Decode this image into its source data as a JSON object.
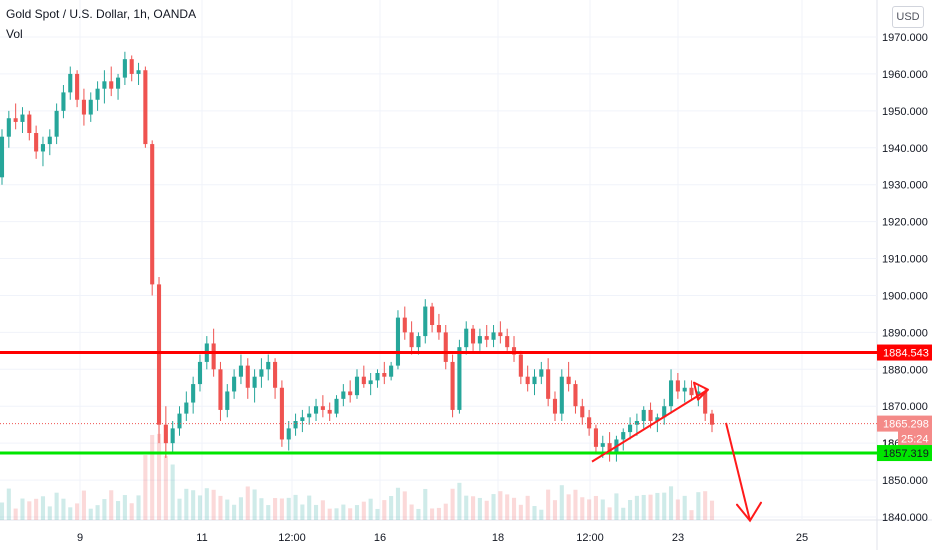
{
  "header": {
    "title": "Gold Spot / U.S. Dollar, 1h, OANDA",
    "volume_label": "Vol",
    "currency_button": "USD"
  },
  "colors": {
    "up": "#26a69a",
    "down": "#ef5350",
    "resistance_line": "#ff0000",
    "support_line": "#00e600",
    "drawing": "#ff1a1a",
    "grid": "#f0f3fa"
  },
  "chart_data": {
    "type": "candlestick",
    "y_axis": {
      "range": [
        1838,
        1975
      ],
      "ticks": [
        "1970.000",
        "1960.000",
        "1950.000",
        "1940.000",
        "1930.000",
        "1920.000",
        "1910.000",
        "1900.000",
        "1890.000",
        "1880.000",
        "1870.000",
        "1860.000",
        "1850.000",
        "1840.000"
      ]
    },
    "x_axis": {
      "ticks": [
        "9",
        "11",
        "12:00",
        "16",
        "18",
        "12:00",
        "23",
        "25"
      ]
    },
    "price_labels": [
      {
        "name": "resistance",
        "text": "1884.543",
        "value": 1884.543
      },
      {
        "name": "last-price",
        "text": "1865.298",
        "value": 1865.298
      },
      {
        "name": "countdown",
        "text": "25:24",
        "value": 1861.3
      },
      {
        "name": "support",
        "text": "1857.319",
        "value": 1857.319
      }
    ],
    "hidden_tick": "18",
    "horizontal_lines": [
      {
        "name": "resistance",
        "value": 1884.543
      },
      {
        "name": "support",
        "value": 1857.319
      }
    ],
    "trend_arrow": {
      "from": [
        592,
        1855
      ],
      "to": [
        708,
        1874.5
      ]
    },
    "down_arrow": {
      "from": [
        726,
        1865.5
      ],
      "to": [
        750,
        1839
      ]
    },
    "candles": [
      [
        1932,
        1945,
        1930,
        1943
      ],
      [
        1943,
        1950,
        1940,
        1948
      ],
      [
        1948,
        1952,
        1945,
        1947
      ],
      [
        1947,
        1951,
        1944,
        1949
      ],
      [
        1949,
        1950,
        1942,
        1944
      ],
      [
        1944,
        1946,
        1937,
        1939
      ],
      [
        1939,
        1943,
        1935,
        1941
      ],
      [
        1941,
        1945,
        1938,
        1943
      ],
      [
        1943,
        1952,
        1941,
        1950
      ],
      [
        1950,
        1957,
        1948,
        1955
      ],
      [
        1955,
        1962,
        1953,
        1960
      ],
      [
        1960,
        1961,
        1951,
        1953
      ],
      [
        1953,
        1956,
        1946,
        1949
      ],
      [
        1949,
        1955,
        1947,
        1953
      ],
      [
        1953,
        1958,
        1950,
        1956
      ],
      [
        1956,
        1961,
        1952,
        1958
      ],
      [
        1958,
        1962,
        1954,
        1956
      ],
      [
        1956,
        1960,
        1953,
        1959
      ],
      [
        1959,
        1966,
        1957,
        1964
      ],
      [
        1964,
        1965,
        1958,
        1960
      ],
      [
        1960,
        1963,
        1957,
        1961
      ],
      [
        1961,
        1962,
        1940,
        1941
      ],
      [
        1941,
        1942,
        1900,
        1903
      ],
      [
        1903,
        1905,
        1860,
        1865
      ],
      [
        1865,
        1870,
        1856,
        1860
      ],
      [
        1860,
        1866,
        1857,
        1864
      ],
      [
        1864,
        1870,
        1862,
        1868
      ],
      [
        1868,
        1874,
        1866,
        1871
      ],
      [
        1871,
        1878,
        1868,
        1876
      ],
      [
        1876,
        1884,
        1874,
        1882
      ],
      [
        1882,
        1889,
        1880,
        1887
      ],
      [
        1887,
        1891,
        1878,
        1880
      ],
      [
        1880,
        1882,
        1866,
        1869
      ],
      [
        1869,
        1876,
        1867,
        1874
      ],
      [
        1874,
        1880,
        1872,
        1878
      ],
      [
        1878,
        1884,
        1876,
        1881
      ],
      [
        1881,
        1883,
        1872,
        1875
      ],
      [
        1875,
        1880,
        1871,
        1878
      ],
      [
        1878,
        1883,
        1875,
        1880
      ],
      [
        1880,
        1884,
        1877,
        1882
      ],
      [
        1882,
        1883,
        1872,
        1875
      ],
      [
        1875,
        1877,
        1859,
        1861
      ],
      [
        1861,
        1866,
        1858,
        1864
      ],
      [
        1864,
        1868,
        1862,
        1866
      ],
      [
        1866,
        1869,
        1863,
        1867
      ],
      [
        1867,
        1870,
        1865,
        1868
      ],
      [
        1868,
        1872,
        1866,
        1870
      ],
      [
        1870,
        1873,
        1867,
        1869
      ],
      [
        1869,
        1871,
        1866,
        1868
      ],
      [
        1868,
        1873,
        1867,
        1872
      ],
      [
        1872,
        1876,
        1870,
        1874
      ],
      [
        1874,
        1877,
        1871,
        1873
      ],
      [
        1873,
        1880,
        1872,
        1878
      ],
      [
        1878,
        1881,
        1875,
        1876
      ],
      [
        1876,
        1879,
        1873,
        1877
      ],
      [
        1877,
        1880,
        1875,
        1879
      ],
      [
        1879,
        1882,
        1876,
        1878
      ],
      [
        1878,
        1882,
        1877,
        1881
      ],
      [
        1881,
        1896,
        1880,
        1894
      ],
      [
        1894,
        1897,
        1888,
        1890
      ],
      [
        1890,
        1893,
        1884,
        1886
      ],
      [
        1886,
        1890,
        1884,
        1889
      ],
      [
        1889,
        1899,
        1887,
        1897
      ],
      [
        1897,
        1898,
        1890,
        1892
      ],
      [
        1892,
        1895,
        1888,
        1890
      ],
      [
        1890,
        1892,
        1880,
        1882
      ],
      [
        1882,
        1884,
        1867,
        1869
      ],
      [
        1869,
        1888,
        1868,
        1886
      ],
      [
        1886,
        1893,
        1884,
        1891
      ],
      [
        1891,
        1892,
        1885,
        1887
      ],
      [
        1887,
        1891,
        1885,
        1889
      ],
      [
        1889,
        1892,
        1886,
        1888
      ],
      [
        1888,
        1892,
        1886,
        1890
      ],
      [
        1890,
        1893,
        1887,
        1889
      ],
      [
        1889,
        1891,
        1885,
        1886
      ],
      [
        1886,
        1889,
        1882,
        1884
      ],
      [
        1884,
        1885,
        1876,
        1878
      ],
      [
        1878,
        1881,
        1874,
        1876
      ],
      [
        1876,
        1880,
        1873,
        1878
      ],
      [
        1878,
        1882,
        1876,
        1880
      ],
      [
        1880,
        1883,
        1870,
        1872
      ],
      [
        1872,
        1874,
        1866,
        1868
      ],
      [
        1868,
        1880,
        1866,
        1878
      ],
      [
        1878,
        1882,
        1874,
        1876
      ],
      [
        1876,
        1877,
        1868,
        1870
      ],
      [
        1870,
        1872,
        1865,
        1867
      ],
      [
        1867,
        1869,
        1862,
        1864
      ],
      [
        1864,
        1865,
        1857,
        1859
      ],
      [
        1859,
        1862,
        1856,
        1860
      ],
      [
        1860,
        1863,
        1855,
        1857
      ],
      [
        1857,
        1862,
        1855,
        1861
      ],
      [
        1861,
        1864,
        1858,
        1863
      ],
      [
        1863,
        1867,
        1861,
        1865
      ],
      [
        1865,
        1868,
        1862,
        1866
      ],
      [
        1866,
        1870,
        1864,
        1869
      ],
      [
        1869,
        1871,
        1864,
        1866
      ],
      [
        1866,
        1868,
        1863,
        1867
      ],
      [
        1867,
        1872,
        1865,
        1870
      ],
      [
        1870,
        1880,
        1868,
        1877
      ],
      [
        1877,
        1879,
        1872,
        1874
      ],
      [
        1874,
        1877,
        1871,
        1875
      ],
      [
        1875,
        1877,
        1872,
        1873
      ],
      [
        1873,
        1876,
        1870,
        1874
      ],
      [
        1874,
        1875,
        1866,
        1868
      ],
      [
        1868,
        1869,
        1863,
        1865
      ]
    ]
  }
}
